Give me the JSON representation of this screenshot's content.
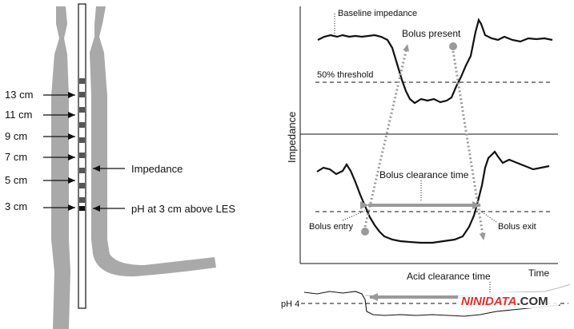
{
  "esophagus": {
    "sensor_labels": [
      "13 cm",
      "11 cm",
      "9 cm",
      "7 cm",
      "5 cm",
      "3 cm"
    ],
    "impedance_label": "Impedance",
    "ph_label": "pH at 3 cm above LES"
  },
  "impedance_panel": {
    "y_axis_label": "Impedance",
    "x_axis_label": "Time",
    "top_trace": {
      "baseline_label": "Baseline impedance",
      "bolus_present_label": "Bolus present",
      "threshold_label": "50% threshold"
    },
    "bottom_trace": {
      "clearance_label": "Bolus clearance time",
      "entry_label": "Bolus entry",
      "exit_label": "Bolus exit"
    }
  },
  "ph_panel": {
    "acid_clearance_label": "Acid clearance time",
    "ph_threshold_label": "pH 4"
  },
  "watermark": {
    "brand": "NINIDATA",
    "suffix": ".COM"
  },
  "colors": {
    "tissue": "#a9a9a9",
    "arrow_gray": "#9a9a9a",
    "trace": "#111111",
    "watermark_red": "#e0312f"
  }
}
